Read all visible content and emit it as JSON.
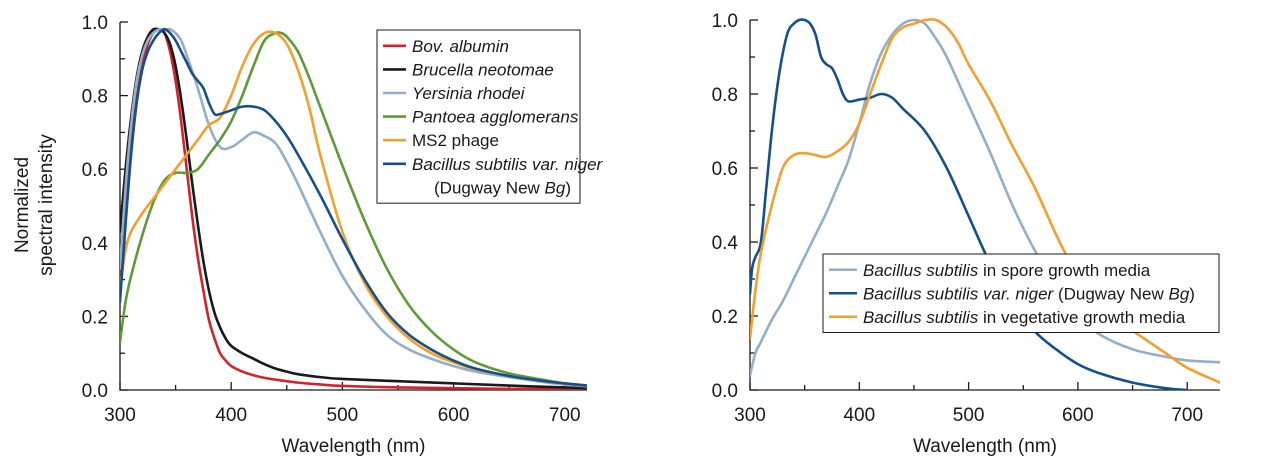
{
  "chart_data": [
    {
      "type": "line",
      "title": "",
      "xlabel": "Wavelength (nm)",
      "ylabel_lines": [
        "Normalized",
        "spectral intensity"
      ],
      "xlim": [
        300,
        720
      ],
      "ylim": [
        0,
        1.0
      ],
      "x_ticks": [
        300,
        400,
        500,
        600,
        700
      ],
      "x_tick_labels": [
        "300",
        "400",
        "500",
        "600",
        "700"
      ],
      "y_ticks": [
        0,
        0.2,
        0.4,
        0.6,
        0.8,
        1.0
      ],
      "y_tick_labels": [
        "0.0",
        "0.2",
        "0.4",
        "0.6",
        "0.8",
        "1.0"
      ],
      "grid": false,
      "legend_position": "top-right",
      "series": [
        {
          "name": "Bov. albumin",
          "legend_parts": [
            {
              "text": "Bov. albumin",
              "italic": true
            }
          ],
          "color": "#d2232a",
          "x": [
            300,
            305,
            310,
            315,
            320,
            325,
            330,
            335,
            340,
            345,
            350,
            355,
            360,
            365,
            370,
            375,
            380,
            385,
            390,
            395,
            400,
            410,
            420,
            430,
            440,
            450,
            460,
            480,
            500,
            550,
            600,
            650,
            700,
            720
          ],
          "y": [
            0.32,
            0.5,
            0.66,
            0.79,
            0.88,
            0.94,
            0.97,
            0.98,
            0.97,
            0.92,
            0.84,
            0.73,
            0.6,
            0.47,
            0.36,
            0.27,
            0.19,
            0.14,
            0.1,
            0.08,
            0.065,
            0.05,
            0.04,
            0.033,
            0.028,
            0.024,
            0.02,
            0.015,
            0.011,
            0.007,
            0.005,
            0.003,
            0.002,
            0.002
          ]
        },
        {
          "name": "Brucella neotomae",
          "legend_parts": [
            {
              "text": "Brucella neotomae",
              "italic": true
            }
          ],
          "color": "#1a1a1a",
          "x": [
            300,
            305,
            310,
            315,
            320,
            325,
            330,
            335,
            340,
            345,
            350,
            355,
            360,
            365,
            370,
            375,
            380,
            385,
            390,
            395,
            400,
            410,
            420,
            430,
            440,
            450,
            460,
            480,
            500,
            550,
            600,
            650,
            700,
            720
          ],
          "y": [
            0.43,
            0.6,
            0.74,
            0.85,
            0.92,
            0.96,
            0.98,
            0.98,
            0.97,
            0.94,
            0.88,
            0.79,
            0.68,
            0.56,
            0.45,
            0.35,
            0.27,
            0.21,
            0.17,
            0.14,
            0.12,
            0.1,
            0.085,
            0.07,
            0.058,
            0.05,
            0.043,
            0.035,
            0.03,
            0.024,
            0.018,
            0.012,
            0.007,
            0.005
          ]
        },
        {
          "name": "Yersinia rhodei",
          "legend_parts": [
            {
              "text": "Yersinia rhodei",
              "italic": true
            }
          ],
          "color": "#93aec5",
          "x": [
            300,
            305,
            310,
            315,
            320,
            325,
            330,
            335,
            340,
            345,
            350,
            355,
            360,
            370,
            380,
            390,
            400,
            410,
            420,
            430,
            440,
            450,
            460,
            480,
            500,
            520,
            540,
            560,
            580,
            600,
            620,
            650,
            680,
            700,
            720
          ],
          "y": [
            0.33,
            0.55,
            0.72,
            0.84,
            0.91,
            0.95,
            0.97,
            0.98,
            0.98,
            0.98,
            0.97,
            0.95,
            0.91,
            0.82,
            0.72,
            0.66,
            0.66,
            0.68,
            0.7,
            0.69,
            0.67,
            0.62,
            0.56,
            0.43,
            0.31,
            0.22,
            0.15,
            0.11,
            0.085,
            0.065,
            0.05,
            0.035,
            0.022,
            0.015,
            0.01
          ]
        },
        {
          "name": "Pantoea agglomerans",
          "legend_parts": [
            {
              "text": "Pantoea agglomerans",
              "italic": true
            }
          ],
          "color": "#5f9a35",
          "x": [
            300,
            305,
            310,
            320,
            330,
            340,
            350,
            360,
            370,
            380,
            390,
            400,
            410,
            420,
            430,
            440,
            445,
            450,
            460,
            470,
            480,
            500,
            520,
            540,
            560,
            580,
            600,
            620,
            650,
            680,
            700,
            720
          ],
          "y": [
            0.13,
            0.24,
            0.31,
            0.42,
            0.51,
            0.57,
            0.59,
            0.59,
            0.6,
            0.64,
            0.68,
            0.73,
            0.8,
            0.88,
            0.95,
            0.97,
            0.97,
            0.96,
            0.92,
            0.85,
            0.77,
            0.61,
            0.46,
            0.33,
            0.23,
            0.16,
            0.11,
            0.075,
            0.045,
            0.028,
            0.018,
            0.012
          ]
        },
        {
          "name": "MS2 phage",
          "legend_parts": [
            {
              "text": "MS2 phage",
              "italic": false
            }
          ],
          "color": "#f29f2e",
          "x": [
            300,
            305,
            310,
            320,
            330,
            340,
            350,
            360,
            370,
            380,
            390,
            400,
            410,
            420,
            430,
            440,
            450,
            460,
            470,
            480,
            500,
            520,
            540,
            560,
            580,
            600,
            620,
            650,
            680,
            700,
            720
          ],
          "y": [
            0.28,
            0.38,
            0.43,
            0.48,
            0.52,
            0.56,
            0.6,
            0.64,
            0.68,
            0.72,
            0.74,
            0.8,
            0.88,
            0.94,
            0.97,
            0.97,
            0.94,
            0.87,
            0.77,
            0.64,
            0.43,
            0.29,
            0.2,
            0.14,
            0.1,
            0.075,
            0.056,
            0.038,
            0.025,
            0.018,
            0.012
          ]
        },
        {
          "name": "Bacillus subtilis var. niger (Dugway New Bg)",
          "legend_parts": [
            {
              "text": "Bacillus subtilis var. niger",
              "italic": true
            }
          ],
          "legend_parts_line2": [
            {
              "text": "(Dugway New ",
              "italic": false
            },
            {
              "text": "Bg",
              "italic": true
            },
            {
              "text": ")",
              "italic": false
            }
          ],
          "color": "#15508a",
          "x": [
            300,
            305,
            310,
            315,
            320,
            325,
            330,
            335,
            340,
            345,
            350,
            355,
            360,
            365,
            370,
            375,
            380,
            385,
            390,
            400,
            410,
            420,
            430,
            440,
            450,
            460,
            480,
            500,
            520,
            540,
            560,
            580,
            600,
            620,
            650,
            680,
            700,
            720
          ],
          "y": [
            0.24,
            0.45,
            0.64,
            0.78,
            0.87,
            0.92,
            0.95,
            0.97,
            0.98,
            0.97,
            0.95,
            0.92,
            0.89,
            0.86,
            0.84,
            0.82,
            0.78,
            0.75,
            0.75,
            0.76,
            0.77,
            0.77,
            0.76,
            0.73,
            0.69,
            0.64,
            0.53,
            0.41,
            0.3,
            0.21,
            0.15,
            0.11,
            0.08,
            0.058,
            0.038,
            0.025,
            0.018,
            0.012
          ]
        }
      ]
    },
    {
      "type": "line",
      "title": "",
      "xlabel": "Wavelength (nm)",
      "ylabel_lines": [],
      "xlim": [
        300,
        730
      ],
      "ylim": [
        0,
        1.0
      ],
      "x_ticks": [
        300,
        400,
        500,
        600,
        700
      ],
      "x_tick_labels": [
        "300",
        "400",
        "500",
        "600",
        "700"
      ],
      "y_ticks": [
        0,
        0.2,
        0.4,
        0.6,
        0.8,
        1.0
      ],
      "y_tick_labels": [
        "0.0",
        "0.2",
        "0.4",
        "0.6",
        "0.8",
        "1.0"
      ],
      "grid": false,
      "legend_position": "bottom-right",
      "series": [
        {
          "name": "Bacillus subtilis in spore growth media",
          "legend_parts": [
            {
              "text": "Bacillus subtilis",
              "italic": true
            },
            {
              "text": " in spore growth media",
              "italic": false
            }
          ],
          "color": "#93aec5",
          "x": [
            300,
            305,
            310,
            320,
            330,
            340,
            350,
            360,
            370,
            380,
            390,
            400,
            410,
            420,
            430,
            440,
            450,
            460,
            470,
            480,
            500,
            520,
            540,
            560,
            580,
            600,
            620,
            650,
            680,
            700,
            730
          ],
          "y": [
            0.04,
            0.1,
            0.13,
            0.19,
            0.24,
            0.3,
            0.36,
            0.42,
            0.48,
            0.55,
            0.62,
            0.72,
            0.83,
            0.91,
            0.96,
            0.99,
            1.0,
            0.99,
            0.95,
            0.9,
            0.77,
            0.64,
            0.5,
            0.38,
            0.28,
            0.2,
            0.15,
            0.11,
            0.09,
            0.08,
            0.075
          ]
        },
        {
          "name": "Bacillus subtilis var. niger (Dugway New Bg)",
          "legend_parts": [
            {
              "text": "Bacillus subtilis var. niger",
              "italic": true
            },
            {
              "text": " (Dugway New ",
              "italic": false
            },
            {
              "text": "Bg",
              "italic": true
            },
            {
              "text": ")",
              "italic": false
            }
          ],
          "color": "#15508a",
          "x": [
            300,
            302,
            305,
            310,
            315,
            320,
            325,
            330,
            335,
            340,
            345,
            350,
            355,
            360,
            365,
            370,
            375,
            380,
            385,
            390,
            400,
            410,
            420,
            430,
            440,
            460,
            480,
            500,
            520,
            540,
            560,
            580,
            600,
            620,
            650,
            680,
            700
          ],
          "y": [
            0.26,
            0.33,
            0.36,
            0.4,
            0.55,
            0.7,
            0.82,
            0.91,
            0.97,
            0.99,
            1.0,
            1.0,
            0.99,
            0.96,
            0.9,
            0.88,
            0.87,
            0.84,
            0.8,
            0.78,
            0.785,
            0.79,
            0.8,
            0.79,
            0.76,
            0.7,
            0.6,
            0.47,
            0.34,
            0.24,
            0.16,
            0.11,
            0.07,
            0.045,
            0.02,
            0.005,
            0.0
          ]
        },
        {
          "name": "Bacillus subtilis in vegetative growth media",
          "legend_parts": [
            {
              "text": "Bacillus subtilis",
              "italic": true
            },
            {
              "text": " in vegetative growth media",
              "italic": false
            }
          ],
          "color": "#f29f2e",
          "x": [
            300,
            305,
            310,
            320,
            330,
            340,
            350,
            360,
            370,
            380,
            390,
            400,
            410,
            420,
            430,
            440,
            450,
            460,
            470,
            480,
            490,
            500,
            520,
            540,
            560,
            580,
            590,
            600,
            620,
            650,
            680,
            700,
            730
          ],
          "y": [
            0.14,
            0.27,
            0.37,
            0.5,
            0.6,
            0.635,
            0.64,
            0.635,
            0.63,
            0.645,
            0.67,
            0.72,
            0.8,
            0.88,
            0.95,
            0.98,
            0.99,
            1.0,
            1.0,
            0.98,
            0.94,
            0.88,
            0.78,
            0.66,
            0.55,
            0.42,
            0.36,
            0.3,
            0.22,
            0.16,
            0.1,
            0.06,
            0.02
          ]
        }
      ]
    }
  ]
}
